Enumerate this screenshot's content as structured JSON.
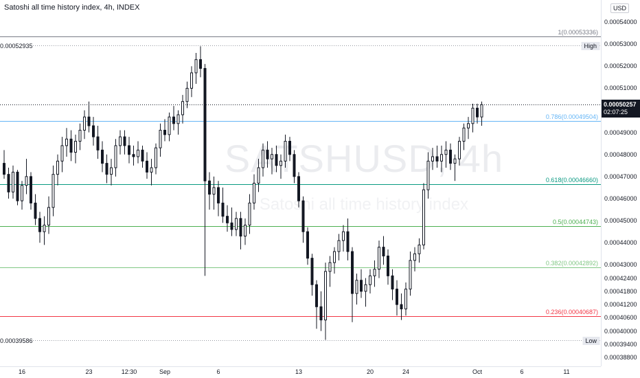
{
  "header": {
    "title": "Satoshi all time history index, 4h, INDEX",
    "currency": "USD"
  },
  "watermark": {
    "ticker": "SATSHUSD, 4h",
    "description": "Satoshi all time history index"
  },
  "price_axis": {
    "ticks": [
      "0.00054000",
      "0.00053000",
      "0.00052000",
      "0.00051000",
      "0.00050000",
      "0.00049000",
      "0.00048000",
      "0.00047000",
      "0.00046000",
      "0.00045000",
      "0.00044000",
      "0.00043000",
      "0.00042400",
      "0.00041800",
      "0.00041200",
      "0.00040600",
      "0.00040000",
      "0.00039400",
      "0.00038800"
    ],
    "tick_values": [
      0.00054,
      0.00053,
      0.00052,
      0.00051,
      0.0005,
      0.00049,
      0.00048,
      0.00047,
      0.00046,
      0.00045,
      0.00044,
      0.00043,
      0.000424,
      0.000418,
      0.000412,
      0.000406,
      0.0004,
      0.000394,
      0.000388
    ]
  },
  "time_axis": {
    "ticks": [
      "16",
      "23",
      "12:30",
      "Sep",
      "6",
      "13",
      "20",
      "24",
      "Oct",
      "6",
      "11"
    ],
    "tick_index": [
      4,
      19,
      28,
      36,
      48,
      66,
      82,
      90,
      106,
      116,
      126
    ]
  },
  "current_price": {
    "price": "0.00050257",
    "countdown": "02:07:25",
    "value": 0.00050257
  },
  "fib_levels": [
    {
      "label": "1(0.00053336)",
      "value": 0.00053336,
      "color": "#787b86"
    },
    {
      "label": "0.786(0.00049504)",
      "value": 0.00049504,
      "color": "#64b5f6"
    },
    {
      "label": "0.618(0.00046660)",
      "value": 0.0004666,
      "color": "#089981"
    },
    {
      "label": "0.5(0.00044743)",
      "value": 0.00044743,
      "color": "#4caf50"
    },
    {
      "label": "0.382(0.00042892)",
      "value": 0.00042892,
      "color": "#81c784"
    },
    {
      "label": "0.236(0.00040687)",
      "value": 0.00040687,
      "color": "#f23645"
    }
  ],
  "high": {
    "label": "High",
    "price": "0.00052935",
    "value": 0.00052935
  },
  "low": {
    "label": "Low",
    "price": "0.00039586",
    "value": 0.00039586
  },
  "chart_data": {
    "type": "candlestick",
    "series": [
      {
        "name": "SATSHUSD",
        "values": [
          [
            0.000476,
            0.000482,
            0.000469,
            0.000471
          ],
          [
            0.000471,
            0.000474,
            0.00046,
            0.000463
          ],
          [
            0.000463,
            0.000475,
            0.00046,
            0.000472
          ],
          [
            0.000472,
            0.000473,
            0.000457,
            0.000459
          ],
          [
            0.000459,
            0.000468,
            0.000455,
            0.000466
          ],
          [
            0.000466,
            0.000478,
            0.000462,
            0.00047
          ],
          [
            0.00047,
            0.000472,
            0.000455,
            0.000458
          ],
          [
            0.000458,
            0.000462,
            0.000448,
            0.000451
          ],
          [
            0.000451,
            0.000454,
            0.00044,
            0.000445
          ],
          [
            0.000445,
            0.000452,
            0.000439,
            0.000448
          ],
          [
            0.000448,
            0.000461,
            0.000444,
            0.000456
          ],
          [
            0.000456,
            0.000475,
            0.000452,
            0.000471
          ],
          [
            0.000471,
            0.00048,
            0.000466,
            0.000477
          ],
          [
            0.000477,
            0.000488,
            0.000472,
            0.000484
          ],
          [
            0.000484,
            0.000492,
            0.000479,
            0.000487
          ],
          [
            0.000487,
            0.000491,
            0.000477,
            0.000481
          ],
          [
            0.000481,
            0.000489,
            0.000476,
            0.000486
          ],
          [
            0.000486,
            0.000494,
            0.000482,
            0.000491
          ],
          [
            0.000491,
            0.0005,
            0.000487,
            0.000497
          ],
          [
            0.000497,
            0.000504,
            0.00049,
            0.000493
          ],
          [
            0.000493,
            0.000497,
            0.000484,
            0.000488
          ],
          [
            0.000488,
            0.000493,
            0.000478,
            0.000482
          ],
          [
            0.000482,
            0.000486,
            0.000472,
            0.000476
          ],
          [
            0.000476,
            0.00048,
            0.000467,
            0.000471
          ],
          [
            0.000471,
            0.000478,
            0.000466,
            0.000474
          ],
          [
            0.000474,
            0.000487,
            0.00047,
            0.000484
          ],
          [
            0.000484,
            0.000491,
            0.00048,
            0.000488
          ],
          [
            0.000488,
            0.000491,
            0.00048,
            0.000484
          ],
          [
            0.000484,
            0.000488,
            0.000476,
            0.00048
          ],
          [
            0.00048,
            0.000484,
            0.000475,
            0.000479
          ],
          [
            0.000479,
            0.000486,
            0.000476,
            0.000482
          ],
          [
            0.000482,
            0.000484,
            0.000474,
            0.000477
          ],
          [
            0.000477,
            0.000481,
            0.000469,
            0.000472
          ],
          [
            0.000472,
            0.000478,
            0.000466,
            0.000474
          ],
          [
            0.000474,
            0.000485,
            0.000471,
            0.000483
          ],
          [
            0.000483,
            0.000494,
            0.000479,
            0.000491
          ],
          [
            0.000491,
            0.000496,
            0.000486,
            0.000489
          ],
          [
            0.000489,
            0.000499,
            0.000486,
            0.000497
          ],
          [
            0.000497,
            0.000502,
            0.000491,
            0.000494
          ],
          [
            0.000494,
            0.0005,
            0.000489,
            0.000498
          ],
          [
            0.000498,
            0.000507,
            0.000494,
            0.000504
          ],
          [
            0.000504,
            0.000513,
            0.000501,
            0.00051
          ],
          [
            0.00051,
            0.00052,
            0.000506,
            0.000517
          ],
          [
            0.000517,
            0.000526,
            0.000512,
            0.000523
          ],
          [
            0.000523,
            0.000529,
            0.000515,
            0.000519
          ],
          [
            0.000519,
            0.000521,
            0.000425,
            0.000468
          ],
          [
            0.000468,
            0.000472,
            0.000455,
            0.000462
          ],
          [
            0.000462,
            0.00047,
            0.000455,
            0.000465
          ],
          [
            0.000465,
            0.000468,
            0.000452,
            0.000458
          ],
          [
            0.000458,
            0.000465,
            0.000449,
            0.000452
          ],
          [
            0.000452,
            0.000457,
            0.000445,
            0.000449
          ],
          [
            0.000449,
            0.000456,
            0.000443,
            0.000446
          ],
          [
            0.000446,
            0.000454,
            0.000443,
            0.000451
          ],
          [
            0.000451,
            0.000454,
            0.000437,
            0.000443
          ],
          [
            0.000443,
            0.000451,
            0.000439,
            0.000448
          ],
          [
            0.000448,
            0.000462,
            0.000444,
            0.000458
          ],
          [
            0.000458,
            0.000471,
            0.000455,
            0.000467
          ],
          [
            0.000467,
            0.000478,
            0.000463,
            0.000474
          ],
          [
            0.000474,
            0.000485,
            0.00047,
            0.000482
          ],
          [
            0.000482,
            0.000486,
            0.000474,
            0.000478
          ],
          [
            0.000478,
            0.000483,
            0.000471,
            0.00048
          ],
          [
            0.00048,
            0.000484,
            0.000472,
            0.000475
          ],
          [
            0.000475,
            0.00048,
            0.000469,
            0.000477
          ],
          [
            0.000477,
            0.000489,
            0.000474,
            0.000486
          ],
          [
            0.000486,
            0.000488,
            0.000477,
            0.00048
          ],
          [
            0.00048,
            0.000482,
            0.000467,
            0.00047
          ],
          [
            0.00047,
            0.000472,
            0.000456,
            0.000459
          ],
          [
            0.000459,
            0.000461,
            0.00044,
            0.000445
          ],
          [
            0.000445,
            0.000447,
            0.00043,
            0.000433
          ],
          [
            0.000433,
            0.000435,
            0.000416,
            0.000421
          ],
          [
            0.000421,
            0.000423,
            0.000401,
            0.000411
          ],
          [
            0.000411,
            0.000418,
            0.0004,
            0.000405
          ],
          [
            0.000405,
            0.000431,
            0.000396,
            0.000427
          ],
          [
            0.000427,
            0.000434,
            0.00042,
            0.000431
          ],
          [
            0.000431,
            0.000438,
            0.000426,
            0.000436
          ],
          [
            0.000436,
            0.000444,
            0.000432,
            0.000441
          ],
          [
            0.000441,
            0.000448,
            0.000436,
            0.000445
          ],
          [
            0.000445,
            0.000451,
            0.000432,
            0.000436
          ],
          [
            0.000436,
            0.000438,
            0.000404,
            0.000417
          ],
          [
            0.000417,
            0.000426,
            0.000412,
            0.000423
          ],
          [
            0.000423,
            0.000428,
            0.000415,
            0.000418
          ],
          [
            0.000418,
            0.000424,
            0.000411,
            0.000421
          ],
          [
            0.000421,
            0.000428,
            0.000417,
            0.000425
          ],
          [
            0.000425,
            0.000432,
            0.00042,
            0.000428
          ],
          [
            0.000428,
            0.000441,
            0.000424,
            0.000438
          ],
          [
            0.000438,
            0.000443,
            0.00043,
            0.000434
          ],
          [
            0.000434,
            0.000437,
            0.000421,
            0.000425
          ],
          [
            0.000425,
            0.000428,
            0.000414,
            0.000419
          ],
          [
            0.000419,
            0.000423,
            0.000407,
            0.000412
          ],
          [
            0.000412,
            0.000417,
            0.000405,
            0.00041
          ],
          [
            0.00041,
            0.000422,
            0.000407,
            0.000419
          ],
          [
            0.000419,
            0.000436,
            0.000416,
            0.000432
          ],
          [
            0.000432,
            0.000438,
            0.000427,
            0.000435
          ],
          [
            0.000435,
            0.000442,
            0.000431,
            0.000439
          ],
          [
            0.000439,
            0.000467,
            0.000437,
            0.000464
          ],
          [
            0.000464,
            0.000481,
            0.00046,
            0.000477
          ],
          [
            0.000477,
            0.000483,
            0.000473,
            0.000479
          ],
          [
            0.000479,
            0.000484,
            0.000474,
            0.000477
          ],
          [
            0.000477,
            0.000484,
            0.000472,
            0.00048
          ],
          [
            0.00048,
            0.000486,
            0.000474,
            0.000482
          ],
          [
            0.000482,
            0.000485,
            0.000473,
            0.000476
          ],
          [
            0.000476,
            0.00048,
            0.000468,
            0.000478
          ],
          [
            0.000478,
            0.000488,
            0.000475,
            0.000486
          ],
          [
            0.000486,
            0.000494,
            0.000482,
            0.000492
          ],
          [
            0.000492,
            0.000497,
            0.000487,
            0.000494
          ],
          [
            0.000494,
            0.000503,
            0.00049,
            0.000501
          ],
          [
            0.000501,
            0.000503,
            0.000494,
            0.000497
          ],
          [
            0.000497,
            0.000504,
            0.000493,
            0.00050257
          ]
        ]
      }
    ],
    "ylim": [
      0.000384,
      0.00055
    ]
  }
}
